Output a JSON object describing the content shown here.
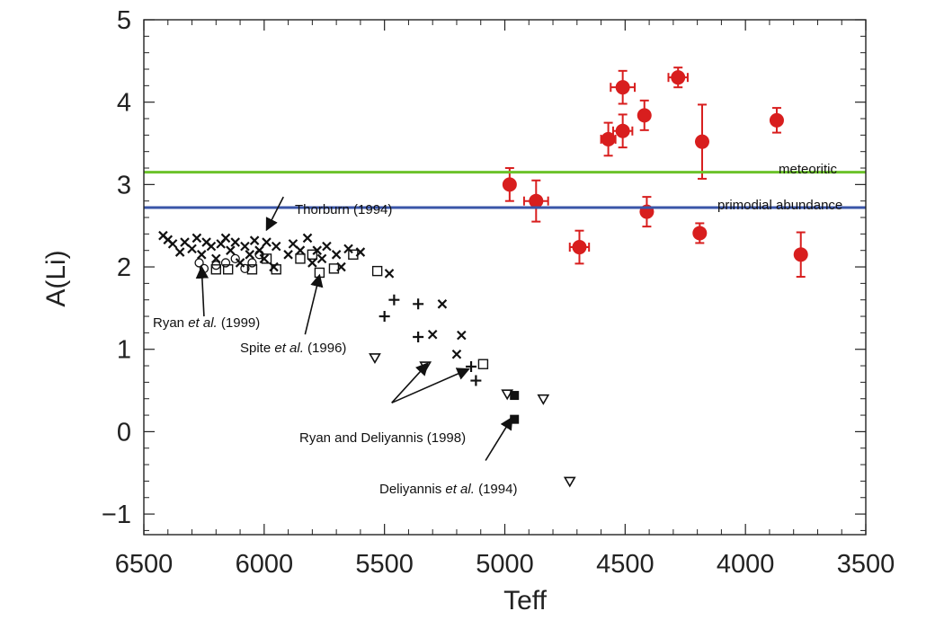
{
  "chart_data": {
    "type": "scatter",
    "xlabel": "Teff",
    "ylabel": "A(Li)",
    "xlim": [
      6500,
      3500
    ],
    "ylim": [
      -1.25,
      5.0
    ],
    "x_ticks": [
      "6500",
      "6000",
      "5500",
      "5000",
      "4500",
      "4000",
      "3500"
    ],
    "y_ticks": [
      "5",
      "4",
      "3",
      "2",
      "1",
      "0",
      "−1"
    ],
    "grid": false,
    "reference_lines": [
      {
        "name": "meteoritic",
        "y": 3.15,
        "color": "#6cc22a"
      },
      {
        "name": "primodial abundance",
        "y": 2.72,
        "color": "#3a55a8"
      }
    ],
    "series": [
      {
        "marker": "circle-error",
        "color": "#d81e1e",
        "points": [
          {
            "x": 4980,
            "y": 3.0,
            "yerr": 0.2,
            "xerr": 0
          },
          {
            "x": 4870,
            "y": 2.8,
            "yerr": 0.25,
            "xerr": 50
          },
          {
            "x": 4690,
            "y": 2.24,
            "yerr": 0.2,
            "xerr": 40
          },
          {
            "x": 4570,
            "y": 3.55,
            "yerr": 0.2,
            "xerr": 30
          },
          {
            "x": 4510,
            "y": 4.18,
            "yerr": 0.2,
            "xerr": 50
          },
          {
            "x": 4510,
            "y": 3.65,
            "yerr": 0.2,
            "xerr": 40
          },
          {
            "x": 4420,
            "y": 3.84,
            "yerr": 0.18,
            "xerr": 0
          },
          {
            "x": 4410,
            "y": 2.67,
            "yerr": 0.18,
            "xerr": 0
          },
          {
            "x": 4280,
            "y": 4.3,
            "yerr": 0.12,
            "xerr": 40
          },
          {
            "x": 4190,
            "y": 2.41,
            "yerr": 0.12,
            "xerr": 0
          },
          {
            "x": 4180,
            "y": 3.52,
            "yerr": 0.45,
            "xerr": 0
          },
          {
            "x": 3870,
            "y": 3.78,
            "yerr": 0.15,
            "xerr": 0
          },
          {
            "x": 3770,
            "y": 2.15,
            "yerr": 0.27,
            "xerr": 0
          }
        ]
      },
      {
        "marker": "x",
        "color": "#111111",
        "points": [
          {
            "x": 6420,
            "y": 2.38
          },
          {
            "x": 6400,
            "y": 2.33
          },
          {
            "x": 6380,
            "y": 2.28
          },
          {
            "x": 6350,
            "y": 2.18
          },
          {
            "x": 6330,
            "y": 2.3
          },
          {
            "x": 6300,
            "y": 2.22
          },
          {
            "x": 6280,
            "y": 2.35
          },
          {
            "x": 6260,
            "y": 2.15
          },
          {
            "x": 6240,
            "y": 2.3
          },
          {
            "x": 6220,
            "y": 2.25
          },
          {
            "x": 6200,
            "y": 2.1
          },
          {
            "x": 6180,
            "y": 2.28
          },
          {
            "x": 6160,
            "y": 2.35
          },
          {
            "x": 6140,
            "y": 2.2
          },
          {
            "x": 6120,
            "y": 2.3
          },
          {
            "x": 6100,
            "y": 2.05
          },
          {
            "x": 6080,
            "y": 2.25
          },
          {
            "x": 6060,
            "y": 2.15
          },
          {
            "x": 6040,
            "y": 2.32
          },
          {
            "x": 6020,
            "y": 2.2
          },
          {
            "x": 6000,
            "y": 2.1
          },
          {
            "x": 5990,
            "y": 2.3
          },
          {
            "x": 5960,
            "y": 2.0
          },
          {
            "x": 5950,
            "y": 2.25
          },
          {
            "x": 5900,
            "y": 2.15
          },
          {
            "x": 5880,
            "y": 2.28
          },
          {
            "x": 5850,
            "y": 2.2
          },
          {
            "x": 5820,
            "y": 2.35
          },
          {
            "x": 5800,
            "y": 2.05
          },
          {
            "x": 5780,
            "y": 2.2
          },
          {
            "x": 5760,
            "y": 2.1
          },
          {
            "x": 5740,
            "y": 2.25
          },
          {
            "x": 5700,
            "y": 2.15
          },
          {
            "x": 5680,
            "y": 2.0
          },
          {
            "x": 5650,
            "y": 2.22
          },
          {
            "x": 5600,
            "y": 2.18
          },
          {
            "x": 5480,
            "y": 1.92
          },
          {
            "x": 5300,
            "y": 1.18
          },
          {
            "x": 5260,
            "y": 1.55
          },
          {
            "x": 5200,
            "y": 0.94
          },
          {
            "x": 5180,
            "y": 1.17
          }
        ]
      },
      {
        "marker": "circle-open",
        "color": "#111111",
        "points": [
          {
            "x": 6270,
            "y": 2.05
          },
          {
            "x": 6250,
            "y": 1.98
          },
          {
            "x": 6200,
            "y": 2.02
          },
          {
            "x": 6160,
            "y": 2.05
          },
          {
            "x": 6120,
            "y": 2.1
          },
          {
            "x": 6080,
            "y": 1.98
          },
          {
            "x": 6050,
            "y": 2.05
          },
          {
            "x": 6020,
            "y": 2.15
          }
        ]
      },
      {
        "marker": "square-open",
        "color": "#111111",
        "points": [
          {
            "x": 6200,
            "y": 1.97
          },
          {
            "x": 6150,
            "y": 1.97
          },
          {
            "x": 6050,
            "y": 1.97
          },
          {
            "x": 5990,
            "y": 2.1
          },
          {
            "x": 5950,
            "y": 1.97
          },
          {
            "x": 5850,
            "y": 2.1
          },
          {
            "x": 5800,
            "y": 2.15
          },
          {
            "x": 5770,
            "y": 1.93
          },
          {
            "x": 5710,
            "y": 1.98
          },
          {
            "x": 5630,
            "y": 2.15
          },
          {
            "x": 5530,
            "y": 1.95
          },
          {
            "x": 5090,
            "y": 0.82
          }
        ]
      },
      {
        "marker": "plus",
        "color": "#111111",
        "points": [
          {
            "x": 5500,
            "y": 1.4
          },
          {
            "x": 5460,
            "y": 1.6
          },
          {
            "x": 5360,
            "y": 1.55
          },
          {
            "x": 5360,
            "y": 1.15
          },
          {
            "x": 5140,
            "y": 0.79
          },
          {
            "x": 5120,
            "y": 0.62
          }
        ]
      },
      {
        "marker": "triangle-down",
        "color": "#111111",
        "points": [
          {
            "x": 5540,
            "y": 0.9
          },
          {
            "x": 5330,
            "y": 0.8
          },
          {
            "x": 4990,
            "y": 0.46
          },
          {
            "x": 4840,
            "y": 0.4
          },
          {
            "x": 4730,
            "y": -0.6
          }
        ]
      },
      {
        "marker": "square-filled",
        "color": "#111111",
        "points": [
          {
            "x": 4960,
            "y": 0.44
          },
          {
            "x": 4960,
            "y": 0.15
          }
        ]
      }
    ],
    "annotations": [
      {
        "text": "Thorburn (1994)",
        "ax": 5990,
        "ay": 2.45,
        "tx": 5920,
        "ty": 2.85
      },
      {
        "text": "Ryan et al. (1999)",
        "ax": 6260,
        "ay": 2.0,
        "tx": 6250,
        "ty": 1.4
      },
      {
        "text": "Spite et al. (1996)",
        "ax": 5770,
        "ay": 1.9,
        "tx": 5830,
        "ty": 1.18
      },
      {
        "text": "Ryan and Deliyannis (1998)",
        "ax": 5320,
        "ay": 0.83,
        "tx": 5470,
        "ty": 0.35
      },
      {
        "text": "Ryan and Deliyannis (1998)",
        "ax": 5150,
        "ay": 0.76,
        "tx": 5470,
        "ty": 0.35
      },
      {
        "text": "Deliyannis et al. (1994)",
        "ax": 4970,
        "ay": 0.17,
        "tx": 5080,
        "ty": -0.35
      }
    ],
    "annotation_labels": {
      "thorburn": "Thorburn (1994)",
      "ryan_pre": "Ryan ",
      "ryan_etal": "et al.",
      "ryan_post": " (1999)",
      "spite_pre": "Spite ",
      "spite_etal": "et al.",
      "spite_post": " (1996)",
      "ryan_deliyannis": "Ryan and Deliyannis (1998)",
      "deli_pre": "Deliyannis ",
      "deli_etal": "et al.",
      "deli_post": " (1994)"
    }
  }
}
